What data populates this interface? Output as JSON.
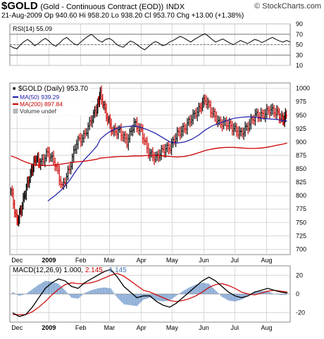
{
  "header": {
    "symbol": "$GOLD",
    "name": "(Gold - Continuous Contract (EOD))",
    "exchange": "INDX",
    "brand": "© StockCharts.com",
    "date": "21-Aug-2009",
    "open": "Op 940.60",
    "high": "Hi 958.20",
    "low": "Lo 938.20",
    "close": "Cl 953.70",
    "change": "Chg +13.00 (+1.38%)"
  },
  "colors": {
    "up": "#000000",
    "down": "#cc0000",
    "ma50": "#1a1aa6",
    "ma200": "#cc0000",
    "macd": "#000000",
    "signal": "#cc0000",
    "hist": "#3d73b8",
    "grid": "#cfcfcf"
  },
  "chart_data": [
    {
      "type": "line",
      "title": "RSI(14) 55.09",
      "ylim": [
        10,
        90
      ],
      "y_ticks": [
        "90",
        "70",
        "50",
        "30",
        "10"
      ],
      "reference_lines": [
        70,
        50,
        30
      ],
      "values": [
        48,
        44,
        42,
        50,
        56,
        60,
        55,
        48,
        52,
        58,
        62,
        57,
        50,
        47,
        53,
        60,
        64,
        58,
        52,
        49,
        55,
        61,
        66,
        70,
        64,
        58,
        55,
        60,
        62,
        58,
        51,
        47,
        45,
        52,
        57,
        54,
        49,
        44,
        40,
        46,
        52,
        56,
        53,
        48,
        50,
        55,
        58,
        62,
        66,
        63,
        59,
        55,
        60,
        64,
        68,
        71,
        66,
        60,
        55,
        58,
        61,
        57,
        53,
        50,
        54,
        58,
        55,
        52,
        56,
        60,
        58,
        54,
        57,
        61,
        64,
        60,
        57,
        55,
        58,
        55
      ]
    },
    {
      "type": "line",
      "title": "$GOLD (Daily) 953.70",
      "ylim": [
        690,
        1010
      ],
      "y_ticks": [
        "1000",
        "975",
        "950",
        "925",
        "900",
        "875",
        "850",
        "825",
        "800",
        "775",
        "750",
        "725",
        "700"
      ],
      "x_ticks": [
        "Dec",
        "2009",
        "Feb",
        "Mar",
        "Apr",
        "May",
        "Jun",
        "Jul",
        "Aug"
      ],
      "legend": [
        "MA(50) 939.29",
        "MA(200) 897.84",
        "Volume undef"
      ],
      "series": [
        {
          "name": "$GOLD",
          "x": [
            "2008-11-25",
            "2008-12-01",
            "2008-12-05",
            "2008-12-10",
            "2008-12-15",
            "2008-12-19",
            "2008-12-24",
            "2008-12-31",
            "2009-01-07",
            "2009-01-14",
            "2009-01-21",
            "2009-01-28",
            "2009-02-04",
            "2009-02-11",
            "2009-02-17",
            "2009-02-20",
            "2009-02-26",
            "2009-03-04",
            "2009-03-11",
            "2009-03-18",
            "2009-03-25",
            "2009-04-01",
            "2009-04-08",
            "2009-04-15",
            "2009-04-22",
            "2009-04-29",
            "2009-05-06",
            "2009-05-13",
            "2009-05-20",
            "2009-05-27",
            "2009-06-02",
            "2009-06-09",
            "2009-06-16",
            "2009-06-23",
            "2009-06-30",
            "2009-07-07",
            "2009-07-14",
            "2009-07-21",
            "2009-07-28",
            "2009-08-04",
            "2009-08-11",
            "2009-08-17",
            "2009-08-21"
          ],
          "values": [
            810,
            750,
            775,
            815,
            845,
            870,
            860,
            880,
            860,
            815,
            850,
            900,
            910,
            940,
            965,
            990,
            950,
            920,
            920,
            900,
            935,
            920,
            880,
            870,
            885,
            890,
            915,
            925,
            945,
            960,
            980,
            955,
            935,
            935,
            925,
            915,
            930,
            950,
            950,
            960,
            955,
            940,
            954
          ]
        },
        {
          "name": "MA(50)",
          "values": [
            null,
            null,
            null,
            null,
            null,
            null,
            null,
            790,
            800,
            812,
            828,
            848,
            866,
            880,
            893,
            905,
            915,
            922,
            927,
            929,
            930,
            927,
            922,
            916,
            908,
            900,
            898,
            900,
            905,
            913,
            922,
            930,
            935,
            940,
            944,
            946,
            947,
            946,
            944,
            943,
            942,
            940,
            939
          ]
        },
        {
          "name": "MA(200)",
          "values": [
            874,
            870,
            866,
            862,
            859,
            857,
            856,
            856,
            857,
            859,
            861,
            863,
            864,
            866,
            868,
            870,
            871,
            872,
            873,
            873,
            874,
            874,
            875,
            875,
            874,
            873,
            872,
            873,
            876,
            880,
            884,
            887,
            889,
            890,
            890,
            889,
            888,
            888,
            889,
            891,
            894,
            896,
            898
          ]
        }
      ]
    },
    {
      "type": "line",
      "title": "MACD(12,26,9) 1.000, 2.145, -1.145",
      "ylim": [
        -30,
        30
      ],
      "y_ticks": [
        "20",
        "0",
        "-20"
      ],
      "x_ticks": [
        "Dec",
        "2009",
        "Feb",
        "Mar",
        "Apr",
        "May",
        "Jun",
        "Jul",
        "Aug"
      ],
      "series": [
        {
          "name": "MACD",
          "values": [
            -20,
            -24,
            -22,
            -14,
            -4,
            6,
            12,
            16,
            14,
            8,
            6,
            12,
            16,
            20,
            24,
            26,
            18,
            8,
            2,
            -4,
            -2,
            -2,
            -8,
            -12,
            -14,
            -10,
            -4,
            2,
            8,
            14,
            18,
            14,
            8,
            2,
            -2,
            -4,
            -2,
            2,
            4,
            6,
            4,
            2,
            1
          ]
        },
        {
          "name": "Signal",
          "values": [
            -22,
            -22,
            -22,
            -19,
            -14,
            -8,
            -1,
            5,
            10,
            12,
            11,
            11,
            12,
            14,
            17,
            20,
            22,
            19,
            14,
            9,
            4,
            2,
            -1,
            -4,
            -7,
            -8,
            -7,
            -5,
            -2,
            2,
            7,
            10,
            11,
            9,
            6,
            2,
            0,
            -1,
            1,
            3,
            4,
            3,
            2
          ]
        },
        {
          "name": "Histogram",
          "values": [
            2,
            -2,
            0,
            5,
            10,
            14,
            13,
            11,
            4,
            -4,
            -5,
            1,
            4,
            6,
            7,
            6,
            -4,
            -11,
            -12,
            -13,
            -6,
            -4,
            -7,
            -8,
            -7,
            -2,
            3,
            7,
            10,
            12,
            11,
            4,
            -3,
            -7,
            -8,
            -6,
            -2,
            3,
            3,
            3,
            0,
            -1,
            -1
          ]
        }
      ]
    }
  ]
}
